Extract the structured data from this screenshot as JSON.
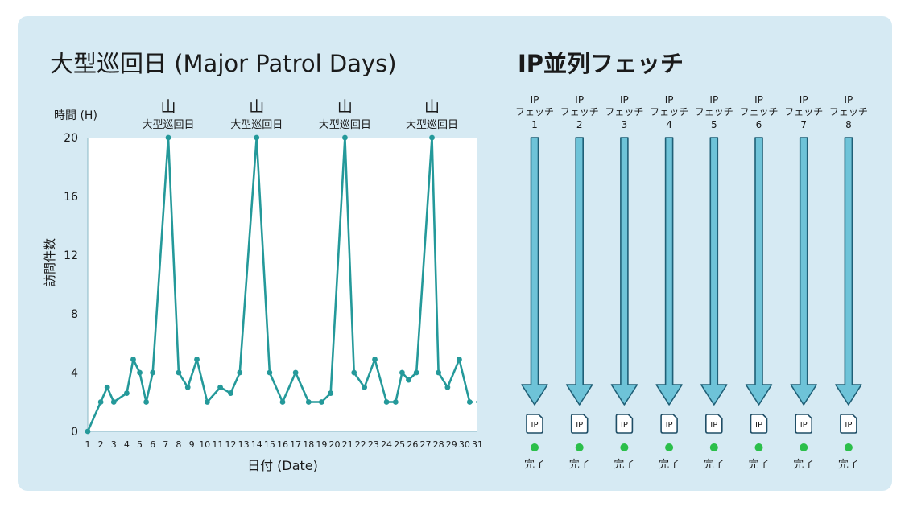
{
  "left_title": "大型巡回日 (Major Patrol Days)",
  "right_title": "IP並列フェッチ",
  "colors": {
    "panel": "#d6eaf3",
    "line": "#24999a",
    "plot_bg": "#ffffff",
    "arrow_fill": "#6ec3d8",
    "arrow_stroke": "#1f5f76",
    "done_dot": "#2bbf4a"
  },
  "chart_data": {
    "type": "line",
    "xlabel": "日付 (Date)",
    "ylabel": "訪問件数",
    "y_unit_label": "時間 (H)",
    "xlim": [
      1,
      31
    ],
    "ylim": [
      0,
      20
    ],
    "y_ticks": [
      0,
      4,
      8,
      12,
      16,
      20
    ],
    "x_ticks": [
      "1",
      "2",
      "3",
      "4",
      "5",
      "6",
      "7",
      "8",
      "9",
      "10",
      "11",
      "12",
      "13",
      "14",
      "15",
      "16",
      "17",
      "18",
      "19",
      "20",
      "21",
      "22",
      "23",
      "24",
      "25",
      "26",
      "27",
      "28",
      "29",
      "30",
      "31"
    ],
    "series": [
      {
        "points": [
          [
            1,
            0
          ],
          [
            2,
            2
          ],
          [
            2.5,
            3
          ],
          [
            3,
            2
          ],
          [
            4,
            2.6
          ],
          [
            4.5,
            4.9
          ],
          [
            5,
            4
          ],
          [
            5.5,
            2
          ],
          [
            6,
            4
          ],
          [
            7.2,
            20
          ],
          [
            8,
            4
          ],
          [
            8.7,
            3
          ],
          [
            9.4,
            4.9
          ],
          [
            10.2,
            2
          ],
          [
            11.2,
            3
          ],
          [
            12,
            2.6
          ],
          [
            12.7,
            4
          ],
          [
            14,
            20
          ],
          [
            15,
            4
          ],
          [
            16,
            2
          ],
          [
            17,
            4
          ],
          [
            18,
            2
          ],
          [
            19,
            2
          ],
          [
            19.7,
            2.6
          ],
          [
            20.8,
            20
          ],
          [
            21.5,
            4
          ],
          [
            22.3,
            3
          ],
          [
            23.1,
            4.9
          ],
          [
            24,
            2
          ],
          [
            24.7,
            2
          ],
          [
            25.2,
            4
          ],
          [
            25.7,
            3.5
          ],
          [
            26.3,
            4
          ],
          [
            27.5,
            20
          ],
          [
            28,
            4
          ],
          [
            28.7,
            3
          ],
          [
            29.6,
            4.9
          ],
          [
            30.4,
            2
          ]
        ],
        "tail": [
          [
            30.4,
            2
          ],
          [
            31,
            2
          ]
        ]
      }
    ],
    "annotations": [
      {
        "x": 7.2,
        "icon": "山",
        "text": "大型巡回日"
      },
      {
        "x": 14,
        "icon": "山",
        "text": "大型巡回日"
      },
      {
        "x": 20.8,
        "icon": "山",
        "text": "大型巡回日"
      },
      {
        "x": 27.5,
        "icon": "山",
        "text": "大型巡回日"
      }
    ]
  },
  "fetches": [
    {
      "label_top": "IP",
      "label_mid": "フェッチ",
      "num": "1",
      "file": "IP",
      "status": "完了"
    },
    {
      "label_top": "IP",
      "label_mid": "フェッチ",
      "num": "2",
      "file": "IP",
      "status": "完了"
    },
    {
      "label_top": "IP",
      "label_mid": "フェッチ",
      "num": "3",
      "file": "IP",
      "status": "完了"
    },
    {
      "label_top": "IP",
      "label_mid": "フェッチ",
      "num": "4",
      "file": "IP",
      "status": "完了"
    },
    {
      "label_top": "IP",
      "label_mid": "フェッチ",
      "num": "5",
      "file": "IP",
      "status": "完了"
    },
    {
      "label_top": "IP",
      "label_mid": "フェッチ",
      "num": "6",
      "file": "IP",
      "status": "完了"
    },
    {
      "label_top": "IP",
      "label_mid": "フェッチ",
      "num": "7",
      "file": "IP",
      "status": "完了"
    },
    {
      "label_top": "IP",
      "label_mid": "フェッチ",
      "num": "8",
      "file": "IP",
      "status": "完了"
    }
  ]
}
